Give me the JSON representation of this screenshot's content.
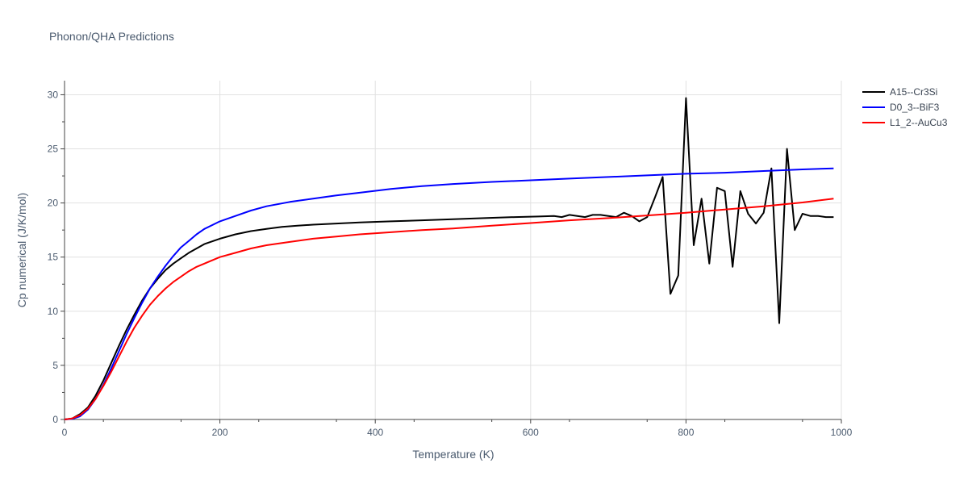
{
  "chart_data": {
    "type": "line",
    "title": "Phonon/QHA Predictions",
    "xlabel": "Temperature (K)",
    "ylabel": "Cp numerical (J/K/mol)",
    "xlim": [
      0,
      1000
    ],
    "ylim": [
      0,
      31.3
    ],
    "xticks": [
      0,
      200,
      400,
      600,
      800,
      1000
    ],
    "yticks": [
      0,
      5,
      10,
      15,
      20,
      25,
      30
    ],
    "grid": true,
    "legend_position": "top-right",
    "series": [
      {
        "name": "A15--Cr3Si",
        "color": "#000000",
        "x": [
          0,
          10,
          20,
          30,
          40,
          50,
          60,
          70,
          80,
          90,
          100,
          110,
          120,
          130,
          140,
          150,
          160,
          170,
          180,
          200,
          220,
          240,
          260,
          280,
          300,
          320,
          350,
          380,
          420,
          460,
          500,
          540,
          580,
          610,
          630,
          640,
          650,
          660,
          670,
          680,
          690,
          700,
          710,
          720,
          730,
          740,
          750,
          760,
          770,
          780,
          790,
          800,
          810,
          820,
          830,
          840,
          850,
          860,
          870,
          880,
          890,
          900,
          910,
          920,
          930,
          940,
          950,
          960,
          970,
          980,
          990
        ],
        "y": [
          0,
          0.1,
          0.5,
          1.1,
          2.2,
          3.6,
          5.2,
          6.8,
          8.3,
          9.7,
          11.0,
          12.1,
          13.0,
          13.8,
          14.4,
          14.9,
          15.4,
          15.8,
          16.2,
          16.7,
          17.1,
          17.4,
          17.6,
          17.8,
          17.9,
          18.0,
          18.1,
          18.2,
          18.3,
          18.4,
          18.5,
          18.6,
          18.7,
          18.75,
          18.8,
          18.7,
          18.9,
          18.8,
          18.7,
          18.9,
          18.9,
          18.8,
          18.7,
          19.1,
          18.8,
          18.3,
          18.7,
          20.5,
          22.4,
          11.6,
          13.3,
          29.7,
          16.1,
          20.4,
          14.4,
          21.4,
          21.1,
          14.1,
          21.1,
          19.0,
          18.1,
          19.1,
          23.2,
          8.9,
          25.0,
          17.5,
          19.0,
          18.8,
          18.8,
          18.7,
          18.7
        ]
      },
      {
        "name": "D0_3--BiF3",
        "color": "#0000ff",
        "x": [
          0,
          10,
          20,
          30,
          40,
          50,
          60,
          70,
          80,
          90,
          100,
          110,
          120,
          130,
          140,
          150,
          160,
          170,
          180,
          200,
          220,
          240,
          260,
          290,
          320,
          350,
          380,
          420,
          460,
          500,
          550,
          600,
          650,
          700,
          750,
          800,
          850,
          900,
          950,
          990
        ],
        "y": [
          0,
          0.05,
          0.3,
          0.9,
          1.9,
          3.2,
          4.7,
          6.3,
          7.9,
          9.4,
          10.8,
          12.1,
          13.2,
          14.2,
          15.1,
          15.9,
          16.5,
          17.1,
          17.6,
          18.3,
          18.8,
          19.3,
          19.7,
          20.1,
          20.4,
          20.7,
          20.95,
          21.3,
          21.55,
          21.75,
          21.95,
          22.1,
          22.25,
          22.4,
          22.55,
          22.7,
          22.8,
          22.95,
          23.1,
          23.2
        ]
      },
      {
        "name": "L1_2--AuCu3",
        "color": "#ff0000",
        "x": [
          0,
          10,
          20,
          30,
          40,
          50,
          60,
          70,
          80,
          90,
          100,
          110,
          120,
          130,
          140,
          150,
          160,
          170,
          180,
          200,
          220,
          240,
          260,
          290,
          320,
          350,
          380,
          420,
          460,
          500,
          550,
          600,
          650,
          700,
          750,
          800,
          850,
          900,
          950,
          990
        ],
        "y": [
          0,
          0.1,
          0.4,
          1.0,
          1.9,
          3.1,
          4.4,
          5.8,
          7.2,
          8.5,
          9.6,
          10.6,
          11.4,
          12.1,
          12.7,
          13.2,
          13.7,
          14.1,
          14.4,
          15.0,
          15.4,
          15.8,
          16.1,
          16.4,
          16.7,
          16.9,
          17.1,
          17.3,
          17.5,
          17.65,
          17.9,
          18.15,
          18.4,
          18.6,
          18.85,
          19.1,
          19.4,
          19.7,
          20.05,
          20.4
        ]
      }
    ]
  }
}
